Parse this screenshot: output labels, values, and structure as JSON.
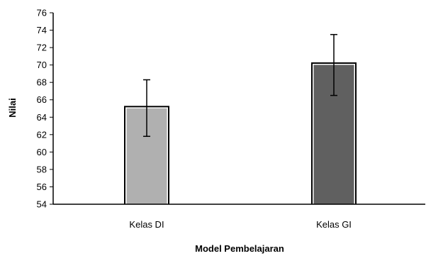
{
  "chart_data": {
    "type": "bar",
    "title": "",
    "xlabel": "Model Pembelajaran",
    "ylabel": "Nilai",
    "categories": [
      "Kelas DI",
      "Kelas GI"
    ],
    "values": [
      65.3,
      70.3
    ],
    "error_low": [
      61.8,
      66.5
    ],
    "error_high": [
      68.3,
      73.5
    ],
    "ylim": [
      54,
      76
    ],
    "yticks": [
      "54",
      "56",
      "58",
      "60",
      "62",
      "64",
      "66",
      "68",
      "70",
      "72",
      "74",
      "76"
    ],
    "bar_colors": [
      "#b0b0b0",
      "#606060"
    ],
    "grid": false,
    "legend": "none"
  }
}
